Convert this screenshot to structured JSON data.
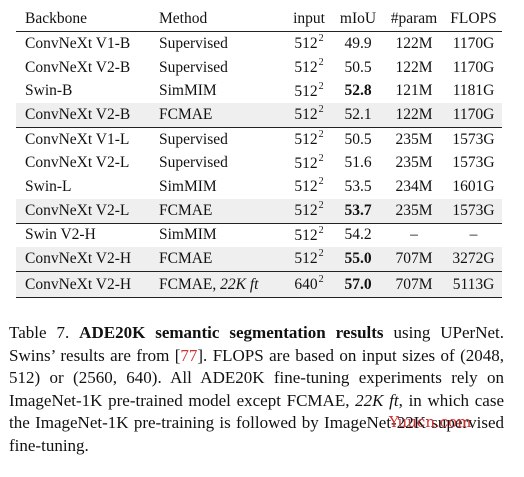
{
  "table": {
    "headers": {
      "backbone": "Backbone",
      "method": "Method",
      "input": "input",
      "miou": "mIoU",
      "param": "#param",
      "flops": "FLOPS"
    },
    "rows": [
      {
        "backbone": "ConvNeXt V1-B",
        "method": "Supervised",
        "input_base": "512",
        "input_exp": "2",
        "miou": "49.9",
        "param": "122M",
        "flops": "1170G"
      },
      {
        "backbone": "ConvNeXt V2-B",
        "method": "Supervised",
        "input_base": "512",
        "input_exp": "2",
        "miou": "50.5",
        "param": "122M",
        "flops": "1170G"
      },
      {
        "backbone": "Swin-B",
        "method": "SimMIM",
        "input_base": "512",
        "input_exp": "2",
        "miou": "52.8",
        "param": "121M",
        "flops": "1181G"
      },
      {
        "backbone": "ConvNeXt V2-B",
        "method": "FCMAE",
        "input_base": "512",
        "input_exp": "2",
        "miou": "52.1",
        "param": "122M",
        "flops": "1170G"
      },
      {
        "backbone": "ConvNeXt V1-L",
        "method": "Supervised",
        "input_base": "512",
        "input_exp": "2",
        "miou": "50.5",
        "param": "235M",
        "flops": "1573G"
      },
      {
        "backbone": "ConvNeXt V2-L",
        "method": "Supervised",
        "input_base": "512",
        "input_exp": "2",
        "miou": "51.6",
        "param": "235M",
        "flops": "1573G"
      },
      {
        "backbone": "Swin-L",
        "method": "SimMIM",
        "input_base": "512",
        "input_exp": "2",
        "miou": "53.5",
        "param": "234M",
        "flops": "1601G"
      },
      {
        "backbone": "ConvNeXt V2-L",
        "method": "FCMAE",
        "input_base": "512",
        "input_exp": "2",
        "miou": "53.7",
        "param": "235M",
        "flops": "1573G"
      },
      {
        "backbone": "Swin V2-H",
        "method": "SimMIM",
        "input_base": "512",
        "input_exp": "2",
        "miou": "54.2",
        "param": "–",
        "flops": "–"
      },
      {
        "backbone": "ConvNeXt V2-H",
        "method": "FCMAE",
        "input_base": "512",
        "input_exp": "2",
        "miou": "55.0",
        "param": "707M",
        "flops": "3272G"
      },
      {
        "backbone": "ConvNeXt V2-H",
        "method": "FCMAE, ",
        "method_italic": "22K ft",
        "input_base": "640",
        "input_exp": "2",
        "miou": "57.0",
        "param": "707M",
        "flops": "5113G"
      }
    ]
  },
  "caption": {
    "label": "Table 7.",
    "title": "ADE20K semantic segmentation results",
    "text_1": " using UPerNet. Swins’ results are from [",
    "ref": "77",
    "text_2": "]. FLOPS are based on input sizes of (2048, 512) or (2560, 640). All ADE20K fine-tuning experiments rely on ImageNet-1K pre-trained model except FCMAE, ",
    "italic": "22K ft",
    "text_3": ", in which case the ImageNet-1K pre-training is followed by ImageNet-22K supervised fine-tuning."
  },
  "watermark": "Yuucn.com"
}
